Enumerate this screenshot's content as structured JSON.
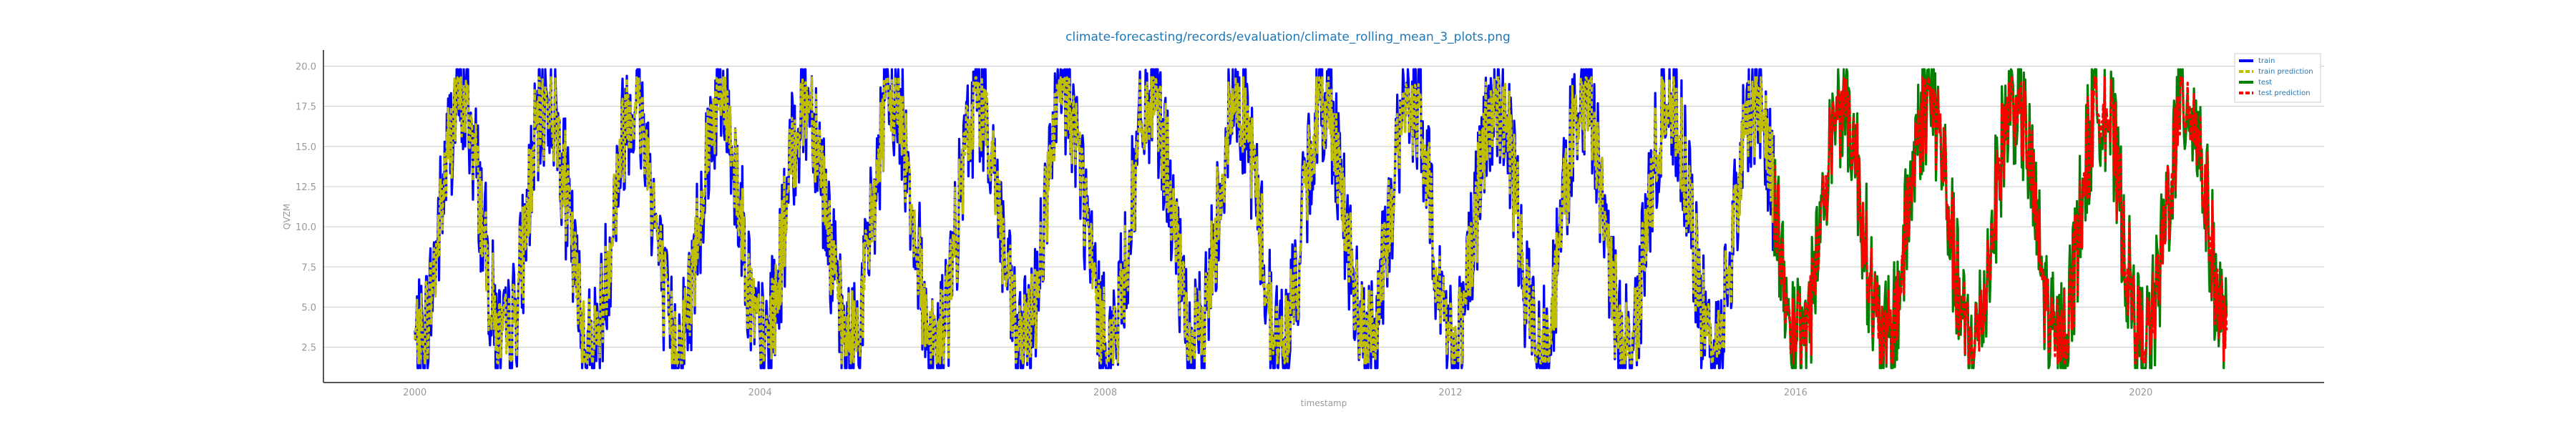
{
  "chart_data": {
    "type": "line",
    "title": "climate-forecasting/records/evaluation/climate_rolling_mean_3_plots.png",
    "xlabel": "timestamp",
    "ylabel": "QVZM",
    "xlim": [
      "1998-12-10",
      "2022-02-15"
    ],
    "ylim": [
      0.3,
      21.0
    ],
    "x_ticks": [
      "2000",
      "2004",
      "2008",
      "2012",
      "2016",
      "2020"
    ],
    "y_ticks": [
      "2.5",
      "5.0",
      "7.5",
      "10.0",
      "12.5",
      "15.0",
      "17.5",
      "20.0"
    ],
    "grid": "horizontal",
    "legend_position": "top-right",
    "train_range": [
      "2000-01-01",
      "2015-10-01"
    ],
    "test_range": [
      "2015-10-01",
      "2020-12-31"
    ],
    "seasonal_range_estimate": {
      "low": 2.5,
      "high": 18.0,
      "peak_month": "July"
    },
    "series": [
      {
        "name": "train",
        "color": "#0000ff",
        "style": "solid"
      },
      {
        "name": "train prediction",
        "color": "#bfbf00",
        "style": "dashed"
      },
      {
        "name": "test",
        "color": "#008000",
        "style": "solid"
      },
      {
        "name": "test prediction",
        "color": "#ff0000",
        "style": "dashed"
      }
    ]
  }
}
